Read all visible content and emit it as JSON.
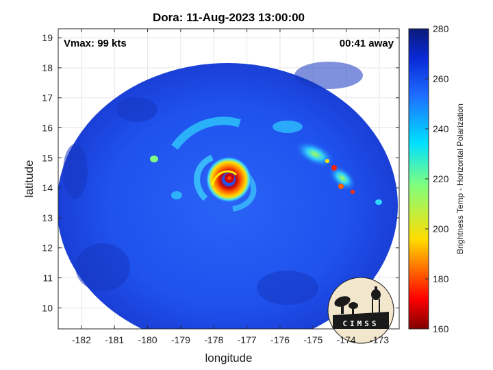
{
  "title": "Dora: 11-Aug-2023 13:00:00",
  "annotations": {
    "vmax": "Vmax: 99 kts",
    "time_away": "00:41 away"
  },
  "x_axis": {
    "label": "longitude",
    "range": [
      -182.7,
      -172.4
    ],
    "ticks": [
      -182,
      -181,
      -180,
      -179,
      -178,
      -177,
      -176,
      -175,
      -174,
      -173
    ]
  },
  "y_axis": {
    "label": "latitude",
    "range": [
      9.3,
      19.3
    ],
    "ticks": [
      10,
      11,
      12,
      13,
      14,
      15,
      16,
      17,
      18,
      19
    ]
  },
  "colorbar": {
    "label": "Brightness Temp - Horizontal Polarization",
    "range": [
      160,
      280
    ],
    "ticks": [
      160,
      180,
      200,
      220,
      240,
      260,
      280
    ]
  },
  "storm_center": {
    "lon": -177.2,
    "lat": 14.3
  },
  "logo": {
    "text": "CIMSS"
  },
  "colors": {
    "background_swath": "#1f55f0",
    "outside": "#ffffff"
  }
}
